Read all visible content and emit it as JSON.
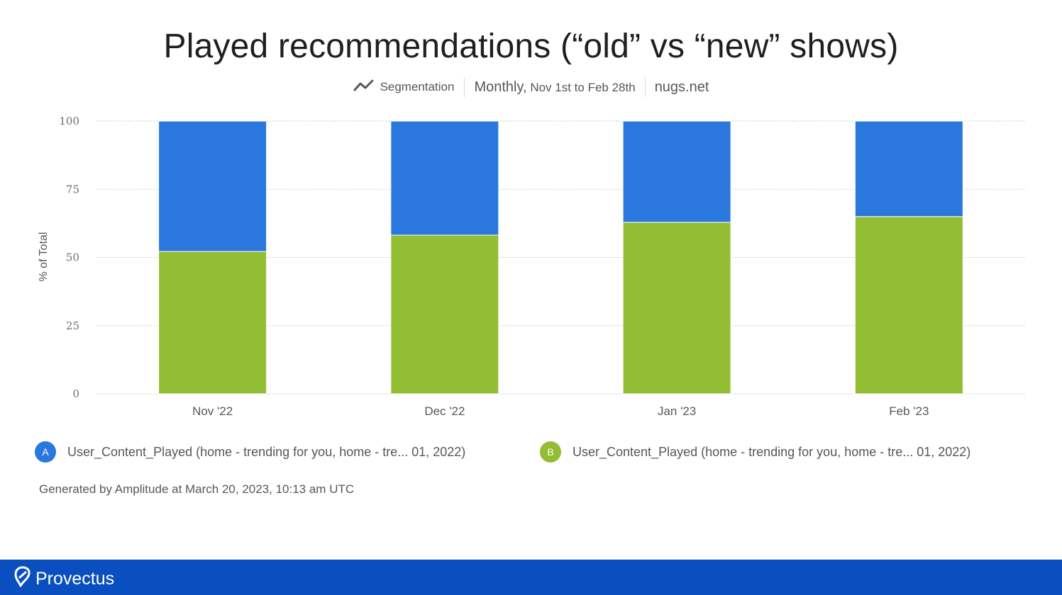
{
  "title": "Played recommendations (“old” vs “new” shows)",
  "subtitle": {
    "mode_icon": "line-chart-icon",
    "mode": "Segmentation",
    "interval": "Monthly,",
    "range": "Nov 1st to Feb 28th",
    "project": "nugs.net"
  },
  "chart_data": {
    "type": "bar",
    "stacked": true,
    "categories": [
      "Nov '22",
      "Dec '22",
      "Jan '23",
      "Feb '23"
    ],
    "ylabel": "% of Total",
    "ylim": [
      0,
      100
    ],
    "yticks": [
      0,
      25,
      50,
      75,
      100
    ],
    "grid": true,
    "series": [
      {
        "key": "B",
        "name": "User_Content_Played (home - trending for you, home - tre...  01, 2022)",
        "color": "#93bd33",
        "values": [
          52.2,
          58.2,
          62.9,
          65.0
        ]
      },
      {
        "key": "A",
        "name": "User_Content_Played (home - trending for you, home - tre...  01, 2022)",
        "color": "#2a77de",
        "values": [
          47.8,
          41.8,
          37.1,
          35.0
        ]
      }
    ]
  },
  "legend": [
    {
      "badge": "A",
      "label": "User_Content_Played (home - trending for you, home - tre...  01, 2022)",
      "color": "#2a77de"
    },
    {
      "badge": "B",
      "label": "User_Content_Played (home - trending for you, home - tre...  01, 2022)",
      "color": "#93bd33"
    }
  ],
  "footnote": "Generated by Amplitude at March 20, 2023, 10:13 am UTC",
  "footer": {
    "brand": "Provectus",
    "logo_icon": "provectus-logo-icon",
    "color": "#0a4fbf"
  }
}
